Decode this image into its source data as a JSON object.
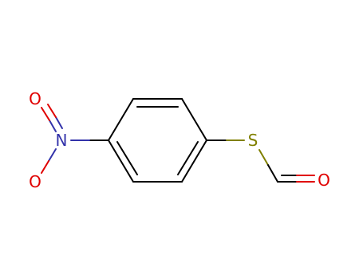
{
  "atoms": [
    {
      "label": "O"
    },
    {
      "label": "N"
    },
    {
      "label": "O"
    },
    {
      "label": "S"
    },
    {
      "label": "O"
    }
  ]
}
